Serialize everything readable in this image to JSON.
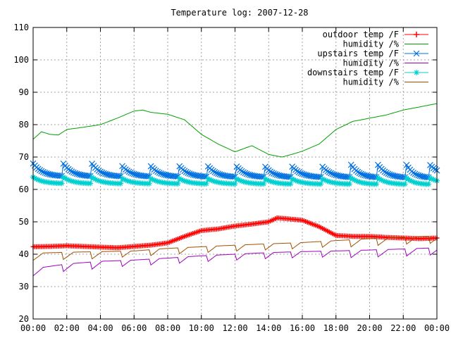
{
  "chart_data": {
    "type": "line",
    "title": "Temperature log: 2007-12-28",
    "xlabel": "",
    "ylabel": "",
    "ylim": [
      20,
      110
    ],
    "xlim": [
      0,
      24
    ],
    "grid": true,
    "legend_position": "top-right",
    "x_tick_labels": [
      "00:00",
      "02:00",
      "04:00",
      "06:00",
      "08:00",
      "10:00",
      "12:00",
      "14:00",
      "16:00",
      "18:00",
      "20:00",
      "22:00",
      "00:00"
    ],
    "y_tick_labels": [
      "20",
      "30",
      "40",
      "50",
      "60",
      "70",
      "80",
      "90",
      "100",
      "110"
    ],
    "series": [
      {
        "name": "outdoor temp /F",
        "color": "#ff0000",
        "marker": "plus",
        "x": [
          0,
          1,
          2,
          3,
          4,
          5,
          6,
          7,
          8,
          9,
          10,
          11,
          12,
          13,
          14,
          14.5,
          15,
          16,
          17,
          18,
          19,
          20,
          21,
          22,
          23,
          24
        ],
        "values": [
          42.3,
          42.4,
          42.6,
          42.4,
          42.2,
          42.0,
          42.4,
          42.8,
          43.5,
          45.5,
          47.3,
          47.8,
          48.7,
          49.3,
          50.0,
          51.2,
          51.0,
          50.5,
          48.5,
          45.8,
          45.5,
          45.5,
          45.2,
          45.0,
          44.8,
          45.0
        ]
      },
      {
        "name": "humidity /%",
        "color": "#00a000",
        "marker": "none",
        "x": [
          0,
          0.5,
          1,
          1.5,
          2,
          3,
          4,
          5,
          6,
          6.5,
          7,
          8,
          9,
          10,
          11,
          12,
          13,
          14,
          14.8,
          15.5,
          16,
          17,
          18,
          19,
          20,
          21,
          22,
          23,
          24
        ],
        "values": [
          75.5,
          77.8,
          77.0,
          76.8,
          78.5,
          79.2,
          80.0,
          82.0,
          84.2,
          84.5,
          83.8,
          83.2,
          81.5,
          77.0,
          74.0,
          71.6,
          73.5,
          70.8,
          70.0,
          71.0,
          71.8,
          74.0,
          78.5,
          81.0,
          82.0,
          83.0,
          84.5,
          85.5,
          86.5
        ]
      },
      {
        "name": "upstairs temp /F",
        "color": "#0070e0",
        "marker": "x",
        "cycle_starts": [
          0,
          1.8,
          3.5,
          5.2,
          6.9,
          8.6,
          10.3,
          12.0,
          13.7,
          15.3,
          17.1,
          18.9,
          20.5,
          22.2,
          23.6
        ],
        "peak": 68.0,
        "trough": 64.0,
        "x": [
          0,
          24
        ],
        "values": [
          68.0,
          64.5
        ]
      },
      {
        "name": "humidity /%",
        "color": "#a000c0",
        "marker": "none",
        "x": [
          0,
          2,
          4,
          6,
          8,
          10,
          12,
          14,
          16,
          18,
          20,
          22,
          24
        ],
        "values": [
          35.5,
          37.0,
          37.8,
          38.2,
          38.8,
          39.5,
          40.0,
          40.5,
          40.8,
          41.0,
          41.3,
          41.6,
          42.0
        ]
      },
      {
        "name": "downstairs temp /F",
        "color": "#00d0d0",
        "marker": "star",
        "x": [
          0,
          24
        ],
        "values": [
          63.5,
          62.3
        ]
      },
      {
        "name": "humidity /%",
        "color": "#a05000",
        "marker": "none",
        "x": [
          0,
          2,
          4,
          6,
          8,
          10,
          12,
          14,
          16,
          18,
          20,
          22,
          24
        ],
        "values": [
          40.3,
          40.6,
          40.8,
          41.0,
          41.8,
          42.3,
          42.8,
          43.2,
          43.6,
          44.2,
          44.8,
          45.3,
          45.6
        ]
      }
    ]
  }
}
